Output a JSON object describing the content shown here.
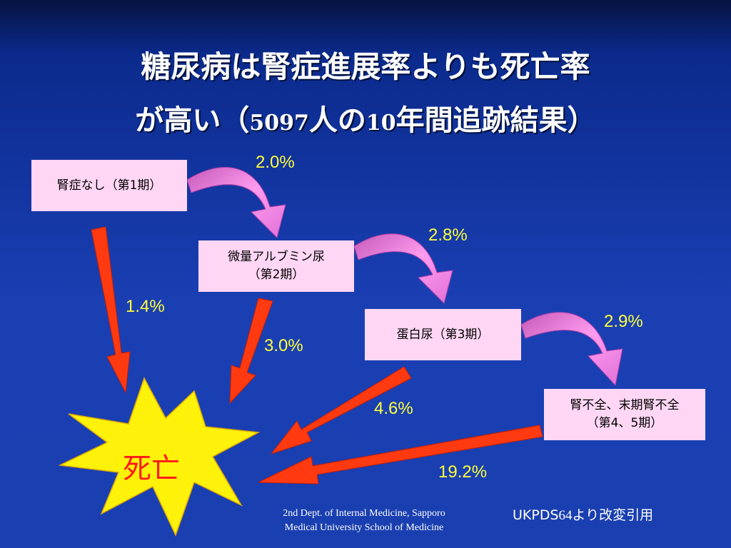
{
  "title": {
    "line1": "糖尿病は腎症進展率よりも死亡率",
    "line2_a": "が高い（",
    "line2_b": "5097",
    "line2_c": "人の",
    "line2_d": "10",
    "line2_e": "年間追跡結果）"
  },
  "stages": {
    "s1": "腎症なし（第1期）",
    "s2_line1": "微量アルブミン尿",
    "s2_line2": "（第2期）",
    "s3": "蛋白尿（第3期）",
    "s4_line1": "腎不全、末期腎不全",
    "s4_line2": "（第4、5期）"
  },
  "death": "死亡",
  "rates": {
    "s1_to_s2": "2.0%",
    "s2_to_s3": "2.8%",
    "s3_to_s4": "2.9%",
    "s1_to_death": "1.4%",
    "s2_to_death": "3.0%",
    "s3_to_death": "4.6%",
    "s4_to_death": "19.2%"
  },
  "footer": {
    "line1": "2nd Dept. of Internal Medicine, Sapporo",
    "line2": "Medical University School of Medicine"
  },
  "source": {
    "a": "UKPDS",
    "b": "64",
    "c": "より改変引用"
  },
  "colors": {
    "box_fill": "#ffd7f5",
    "curved_arrow": "#e070d8",
    "death_arrow": "#ff3a10",
    "percent_text": "#ffff3c",
    "starburst": "#fff20a"
  }
}
